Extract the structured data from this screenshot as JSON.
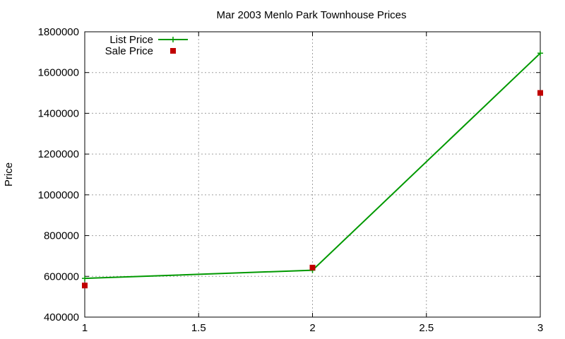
{
  "chart_data": {
    "type": "line",
    "title": "Mar 2003 Menlo Park Townhouse Prices",
    "xlabel": "",
    "ylabel": "Price",
    "xlim": [
      1,
      3
    ],
    "ylim": [
      400000,
      1800000
    ],
    "xticks": [
      1,
      1.5,
      2,
      2.5,
      3
    ],
    "xtick_labels": [
      "1",
      "1.5",
      "2",
      "2.5",
      "3"
    ],
    "yticks": [
      400000,
      600000,
      800000,
      1000000,
      1200000,
      1400000,
      1600000,
      1800000
    ],
    "ytick_labels": [
      "400000",
      "600000",
      "800000",
      "1000000",
      "1200000",
      "1400000",
      "1600000",
      "1800000"
    ],
    "grid": true,
    "legend_position": "top-left",
    "series": [
      {
        "name": "List Price",
        "style": "lines+points",
        "marker": "plus",
        "color": "#009900",
        "x": [
          1,
          2,
          3
        ],
        "y": [
          590000,
          630000,
          1695000
        ]
      },
      {
        "name": "Sale Price",
        "style": "points",
        "marker": "square",
        "color": "#c00000",
        "x": [
          1,
          2,
          3
        ],
        "y": [
          555000,
          643000,
          1500000
        ]
      }
    ]
  }
}
